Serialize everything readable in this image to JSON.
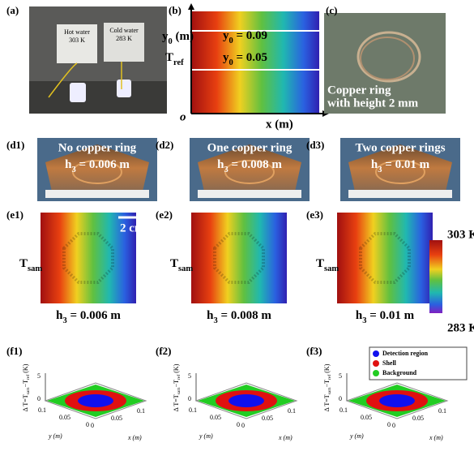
{
  "a": {
    "label": "(a)",
    "hot": [
      "Hot water",
      "303 K"
    ],
    "cold": [
      "Cold water",
      "283 K"
    ]
  },
  "b": {
    "label": "(b)",
    "y_axis": [
      "y",
      "0",
      " (m)"
    ],
    "line1": [
      "y",
      "0",
      " = 0.09"
    ],
    "line2": [
      "y",
      "0",
      " = 0.05"
    ],
    "tref": [
      "T",
      "ref"
    ],
    "origin": "o",
    "x_axis": "x (m)"
  },
  "c": {
    "label": "(c)",
    "caption": [
      "Copper ring",
      "with height 2 mm"
    ]
  },
  "columns": [
    {
      "d_label": "(d1)",
      "d_title": "No copper ring",
      "h": [
        "h",
        "3",
        " = 0.006 m"
      ],
      "e_label": "(e1)",
      "f_label": "(f1)"
    },
    {
      "d_label": "(d2)",
      "d_title": "One copper ring",
      "h": [
        "h",
        "3",
        " = 0.008 m"
      ],
      "e_label": "(e2)",
      "f_label": "(f2)"
    },
    {
      "d_label": "(d3)",
      "d_title": "Two copper rings",
      "h": [
        "h",
        "3",
        " = 0.01 m"
      ],
      "e_label": "(e3)",
      "f_label": "(f3)"
    }
  ],
  "e": {
    "tsam": [
      "T",
      "sam"
    ],
    "scale": "2 cm",
    "colorbar_max": "303 K",
    "colorbar_min": "283 K"
  },
  "f": {
    "zlabel": [
      "Δ T=T",
      "sam",
      "−T",
      "ref",
      " (K)"
    ],
    "zticks": [
      "5",
      "0"
    ],
    "yticks": [
      "0.1",
      "0.05",
      "0"
    ],
    "xticks": [
      "0",
      "0.05",
      "0.1"
    ],
    "ylabel": "y (m)",
    "xlabel": "x (m)",
    "legend": [
      {
        "name": "Detection region",
        "color": "#1010ee"
      },
      {
        "name": "Shell",
        "color": "#e01010"
      },
      {
        "name": "Background",
        "color": "#22cc22"
      }
    ]
  }
}
